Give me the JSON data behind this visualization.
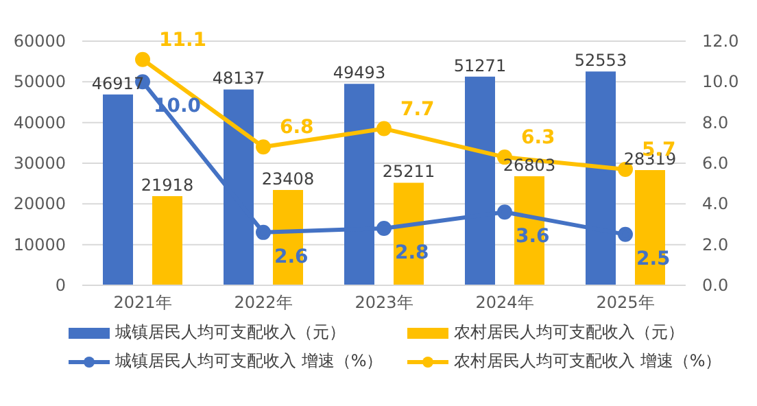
{
  "chart_data": {
    "type": "bar",
    "categories": [
      "2021年",
      "2022年",
      "2023年",
      "2024年",
      "2025年"
    ],
    "series": [
      {
        "name": "城镇居民人均可支配收入（元）",
        "color": "#4472c4",
        "values": [
          46917,
          48137,
          49493,
          51271,
          52553
        ]
      },
      {
        "name": "农村居民人均可支配收入（元）",
        "color": "#ffc000",
        "values": [
          21918,
          23408,
          25211,
          26803,
          28319
        ]
      },
      {
        "name": "城镇居民人均可支配收入 增速（%）",
        "type": "line",
        "axis": "y2",
        "color": "#4472c4",
        "values": [
          10.0,
          2.6,
          2.8,
          3.6,
          2.5
        ],
        "value_labels": [
          "10.0",
          "2.6",
          "2.8",
          "3.6",
          "2.5"
        ]
      },
      {
        "name": "农村居民人均可支配收入 增速（%）",
        "type": "line",
        "axis": "y2",
        "color": "#ffc000",
        "values": [
          11.1,
          6.8,
          7.7,
          6.3,
          5.7
        ],
        "value_labels": [
          "11.1",
          "6.8",
          "7.7",
          "6.3",
          "5.7"
        ]
      }
    ],
    "ylim": [
      0,
      60000
    ],
    "yticks": [
      0,
      10000,
      20000,
      30000,
      40000,
      50000,
      60000
    ],
    "y2lim": [
      0,
      12
    ],
    "y2ticks": [
      {
        "value": 0,
        "label": "0.0"
      },
      {
        "value": 2,
        "label": "2.0"
      },
      {
        "value": 4,
        "label": "4.0"
      },
      {
        "value": 6,
        "label": "6.0"
      },
      {
        "value": 8,
        "label": "8.0"
      },
      {
        "value": 10,
        "label": "10.0"
      },
      {
        "value": 12,
        "label": "12.0"
      }
    ],
    "data_labels": true,
    "grid": "y",
    "legend": "bottom",
    "marker": "circle",
    "line_style": "solid"
  }
}
